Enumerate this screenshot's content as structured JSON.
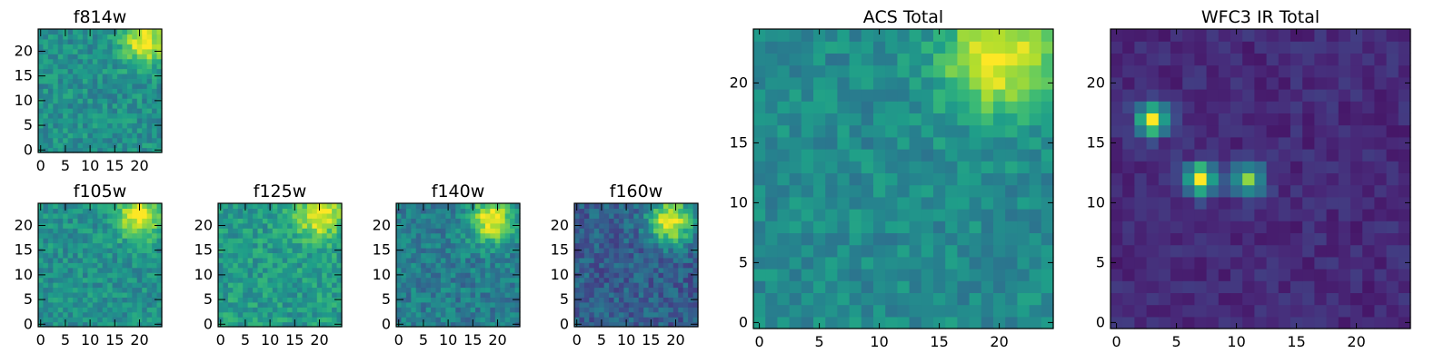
{
  "chart_data": [
    {
      "type": "heatmap",
      "title": "f814w",
      "grid": "25x25",
      "xticks": [
        "0",
        "5",
        "10",
        "15",
        "20"
      ],
      "yticks": [
        "0",
        "5",
        "10",
        "15",
        "20"
      ],
      "hot_spots": [
        {
          "x": 21,
          "y": 22,
          "value": 1.0
        }
      ],
      "base": 0.5,
      "noise": 0.12,
      "colormap": "viridis"
    },
    {
      "type": "heatmap",
      "title": "f105w",
      "grid": "25x25",
      "xticks": [
        "0",
        "5",
        "10",
        "15",
        "20"
      ],
      "yticks": [
        "0",
        "5",
        "10",
        "15",
        "20"
      ],
      "hot_spots": [
        {
          "x": 20,
          "y": 22,
          "value": 1.0
        }
      ],
      "base": 0.5,
      "noise": 0.12,
      "colormap": "viridis"
    },
    {
      "type": "heatmap",
      "title": "f125w",
      "grid": "25x25",
      "xticks": [
        "0",
        "5",
        "10",
        "15",
        "20"
      ],
      "yticks": [
        "0",
        "5",
        "10",
        "15",
        "20"
      ],
      "hot_spots": [
        {
          "x": 20,
          "y": 22,
          "value": 1.0
        }
      ],
      "base": 0.55,
      "noise": 0.13,
      "colormap": "viridis"
    },
    {
      "type": "heatmap",
      "title": "f140w",
      "grid": "25x25",
      "xticks": [
        "0",
        "5",
        "10",
        "15",
        "20"
      ],
      "yticks": [
        "0",
        "5",
        "10",
        "15",
        "20"
      ],
      "hot_spots": [
        {
          "x": 19,
          "y": 21,
          "value": 1.0
        }
      ],
      "base": 0.42,
      "noise": 0.13,
      "colormap": "viridis"
    },
    {
      "type": "heatmap",
      "title": "f160w",
      "grid": "25x25",
      "xticks": [
        "0",
        "5",
        "10",
        "15",
        "20"
      ],
      "yticks": [
        "0",
        "5",
        "10",
        "15",
        "20"
      ],
      "hot_spots": [
        {
          "x": 19,
          "y": 21,
          "value": 1.0
        }
      ],
      "base": 0.3,
      "noise": 0.13,
      "colormap": "viridis"
    },
    {
      "type": "heatmap",
      "title": "ACS Total",
      "grid": "25x25",
      "xticks": [
        "0",
        "5",
        "10",
        "15",
        "20"
      ],
      "yticks": [
        "0",
        "5",
        "10",
        "15",
        "20"
      ],
      "hot_spots": [
        {
          "x": 20,
          "y": 22,
          "value": 1.0
        }
      ],
      "base": 0.48,
      "noise": 0.1,
      "colormap": "viridis"
    },
    {
      "type": "heatmap",
      "title": "WFC3 IR Total",
      "grid": "25x25",
      "xticks": [
        "0",
        "5",
        "10",
        "15",
        "20"
      ],
      "yticks": [
        "0",
        "5",
        "10",
        "15",
        "20"
      ],
      "hot_spots": [
        {
          "x": 3,
          "y": 17,
          "value": 1.0
        },
        {
          "x": 7,
          "y": 12,
          "value": 1.0
        },
        {
          "x": 11,
          "y": 12,
          "value": 0.8
        }
      ],
      "base": 0.12,
      "noise": 0.06,
      "colormap": "viridis"
    }
  ]
}
